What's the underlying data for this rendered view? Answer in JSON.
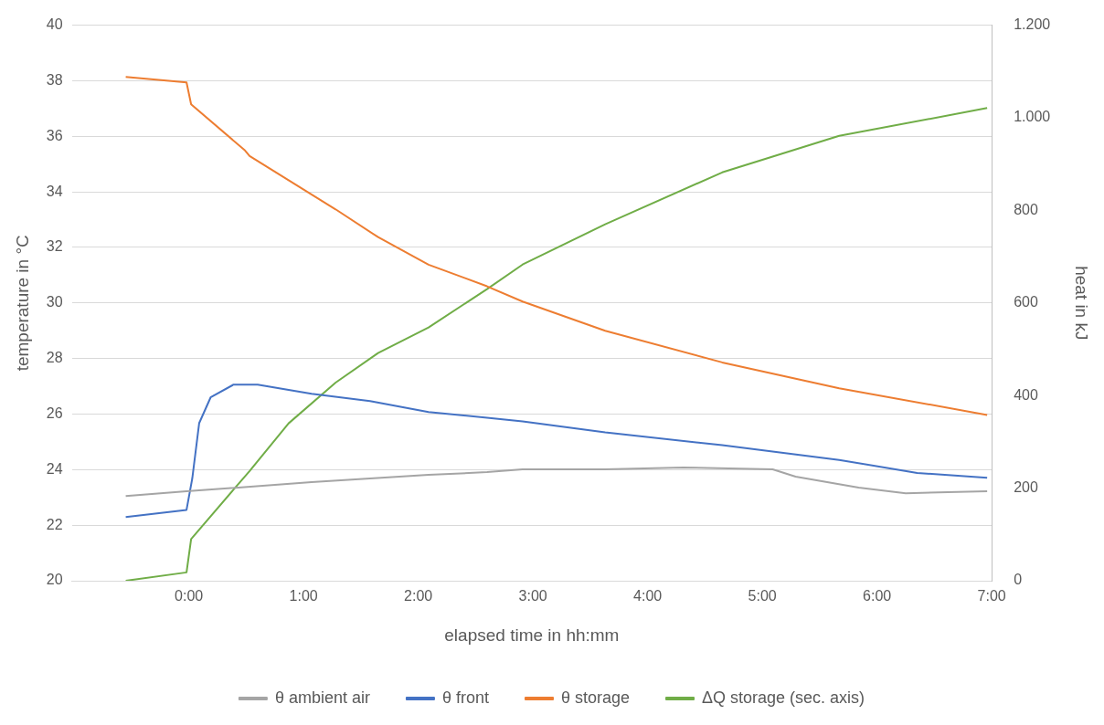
{
  "chart_data": {
    "type": "line",
    "xlabel": "elapsed time in hh:mm",
    "ylabel": "temperature in °C",
    "y2label": "heat in kJ",
    "xlim": [
      -1.02,
      7
    ],
    "xticks": [
      {
        "value": 0,
        "label": "0:00"
      },
      {
        "value": 1,
        "label": "1:00"
      },
      {
        "value": 2,
        "label": "2:00"
      },
      {
        "value": 3,
        "label": "3:00"
      },
      {
        "value": 4,
        "label": "4:00"
      },
      {
        "value": 5,
        "label": "5:00"
      },
      {
        "value": 6,
        "label": "6:00"
      },
      {
        "value": 7,
        "label": "7:00"
      }
    ],
    "ylim": [
      20,
      40
    ],
    "yticks": [
      20,
      22,
      24,
      26,
      28,
      30,
      32,
      34,
      36,
      38,
      40
    ],
    "y2lim": [
      0,
      1200
    ],
    "y2ticks": [
      0,
      200,
      400,
      600,
      800,
      {
        "value": 1000,
        "label": "1.000"
      },
      {
        "value": 1200,
        "label": "1.200"
      }
    ],
    "grid": "y",
    "legend": "bottom",
    "marker": "none",
    "line_style": "solid",
    "series": [
      {
        "name": "θ ambient air",
        "color": "#a5a5a5",
        "x": [
          -0.55,
          -0.02,
          1.07,
          2.09,
          2.6,
          2.91,
          3.63,
          4.31,
          5.09,
          5.29,
          5.84,
          6.25,
          6.96
        ],
        "values": [
          23.05,
          23.22,
          23.55,
          23.81,
          23.91,
          24.01,
          24.01,
          24.08,
          24.01,
          23.75,
          23.35,
          23.15,
          23.22
        ]
      },
      {
        "name": "θ front",
        "color": "#4472c4",
        "x": [
          -0.55,
          -0.02,
          0.03,
          0.09,
          0.19,
          0.39,
          0.6,
          1.07,
          1.58,
          2.09,
          2.6,
          2.91,
          3.63,
          4.65,
          5.67,
          6.35,
          6.96
        ],
        "values": [
          22.29,
          22.55,
          23.68,
          25.67,
          26.6,
          27.06,
          27.06,
          26.73,
          26.47,
          26.07,
          25.87,
          25.74,
          25.34,
          24.88,
          24.35,
          23.88,
          23.71
        ]
      },
      {
        "name": "θ storage",
        "color": "#ed7d31",
        "x": [
          -0.55,
          -0.02,
          0.02,
          0.49,
          0.53,
          1.28,
          1.65,
          2.09,
          2.6,
          2.91,
          3.63,
          4.65,
          5.67,
          6.96
        ],
        "values": [
          38.14,
          37.94,
          37.15,
          35.49,
          35.29,
          33.37,
          32.37,
          31.38,
          30.6,
          30.05,
          29.0,
          27.86,
          26.93,
          25.97
        ]
      },
      {
        "name": "ΔQ storage (sec. axis)",
        "color": "#70ad47",
        "axis": "y2",
        "x": [
          -0.55,
          -0.02,
          0.02,
          0.39,
          0.53,
          0.87,
          1.28,
          1.65,
          2.09,
          2.6,
          2.91,
          3.63,
          4.65,
          5.67,
          6.96
        ],
        "values": [
          0,
          18,
          90,
          197,
          237,
          340,
          428,
          492,
          547,
          630,
          683,
          770,
          882,
          961,
          1021
        ]
      }
    ]
  }
}
